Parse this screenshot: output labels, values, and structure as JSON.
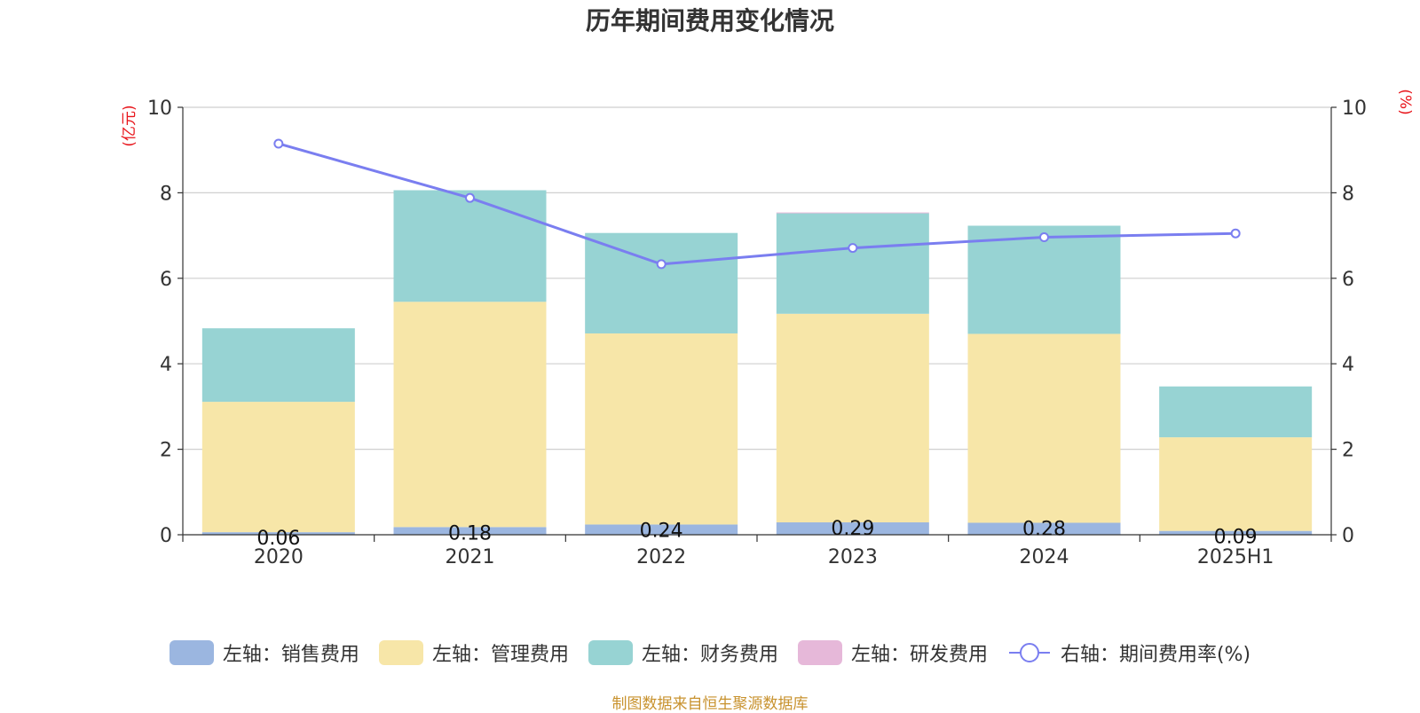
{
  "chart_data": {
    "type": "bar",
    "title": "历年期间费用变化情况",
    "categories": [
      "2020",
      "2021",
      "2022",
      "2023",
      "2024",
      "2025H1"
    ],
    "left_axis": {
      "unit": "(亿元)",
      "ylim": [
        0,
        10
      ],
      "ticks": [
        "0",
        "2",
        "4",
        "6",
        "8",
        "10"
      ]
    },
    "right_axis": {
      "unit": "(%)",
      "ylim": [
        0,
        10
      ],
      "ticks": [
        "0",
        "2",
        "4",
        "6",
        "8",
        "10"
      ]
    },
    "stacked": true,
    "series": [
      {
        "name": "左轴：销售费用",
        "axis": "left",
        "type": "bar",
        "color": "#9bb6e0",
        "values": [
          0.06,
          0.18,
          0.24,
          0.29,
          0.28,
          0.09
        ],
        "labels": [
          "0.06",
          "0.18",
          "0.24",
          "0.29",
          "0.28",
          "0.09"
        ]
      },
      {
        "name": "左轴：管理费用",
        "axis": "left",
        "type": "bar",
        "color": "#f7e6a8",
        "values": [
          3.05,
          5.27,
          4.47,
          4.88,
          4.42,
          2.19
        ]
      },
      {
        "name": "左轴：财务费用",
        "axis": "left",
        "type": "bar",
        "color": "#97d3d3",
        "values": [
          1.72,
          2.61,
          2.35,
          2.35,
          2.53,
          1.19
        ]
      },
      {
        "name": "左轴：研发费用",
        "axis": "left",
        "type": "bar",
        "color": "#e6b8d9",
        "values": [
          0,
          0,
          0,
          0.02,
          0,
          0
        ]
      },
      {
        "name": "右轴：期间费用率(%)",
        "axis": "right",
        "type": "line",
        "color": "#7a7ef0",
        "values": [
          9.15,
          7.88,
          6.33,
          6.71,
          6.96,
          7.05
        ]
      }
    ],
    "grid": true,
    "legend_position": "bottom"
  },
  "source_note": "制图数据来自恒生聚源数据库"
}
